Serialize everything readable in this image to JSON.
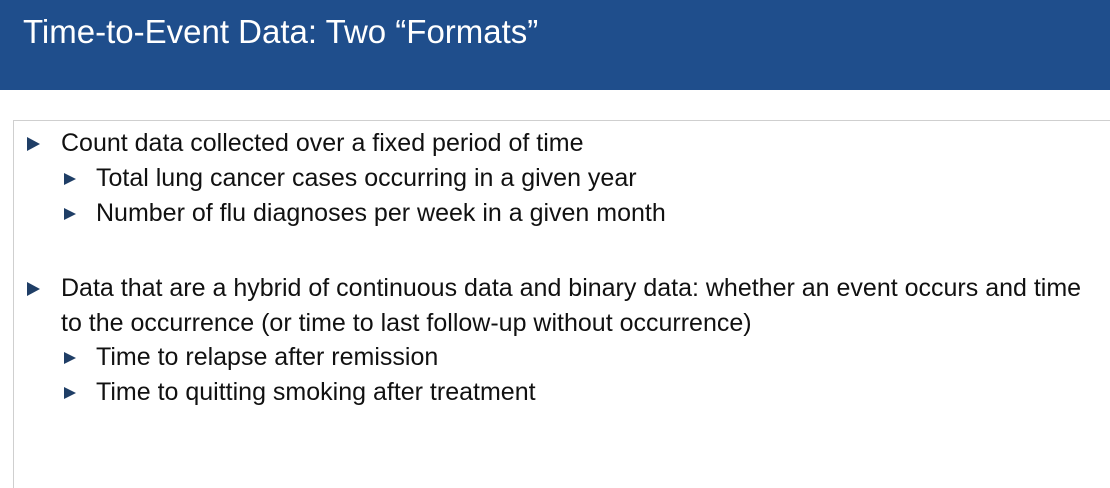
{
  "slide": {
    "title": "Time-to-Event Data: Two “Formats”",
    "bullets": [
      {
        "text": "Count data collected over a fixed period of time",
        "sub": [
          "Total lung cancer cases occurring in a given year",
          "Number of flu diagnoses per week in a given month"
        ]
      },
      {
        "text": "Data that are a hybrid of continuous data and binary data: whether an event occurs and time to the occurrence (or time to last follow-up without occurrence)",
        "sub": [
          "Time to relapse after remission",
          "Time to quitting smoking after treatment"
        ]
      }
    ]
  },
  "colors": {
    "header_bg": "#1f4e8c",
    "bullet_arrow": "#1f3e66"
  },
  "icons": {
    "bullet": "triangle-right-icon"
  }
}
